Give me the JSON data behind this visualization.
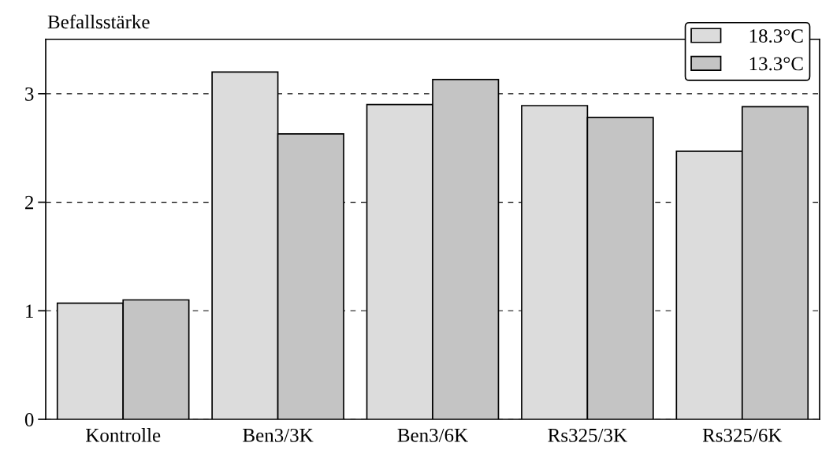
{
  "chart_data": {
    "type": "bar",
    "ylabel": "Befallsstärke",
    "categories": [
      "Kontrolle",
      "Ben3/3K",
      "Ben3/6K",
      "Rs325/3K",
      "Rs325/6K"
    ],
    "series": [
      {
        "name": "18.3°C",
        "color": "#dcdcdc",
        "values": [
          1.07,
          3.2,
          2.9,
          2.89,
          2.47
        ]
      },
      {
        "name": "13.3°C",
        "color": "#c4c4c4",
        "values": [
          1.1,
          2.63,
          3.13,
          2.78,
          2.88
        ]
      }
    ],
    "ylim": [
      0,
      3.5
    ],
    "yticks": [
      0,
      1,
      2,
      3
    ],
    "grid": "y",
    "legend": "top right"
  }
}
